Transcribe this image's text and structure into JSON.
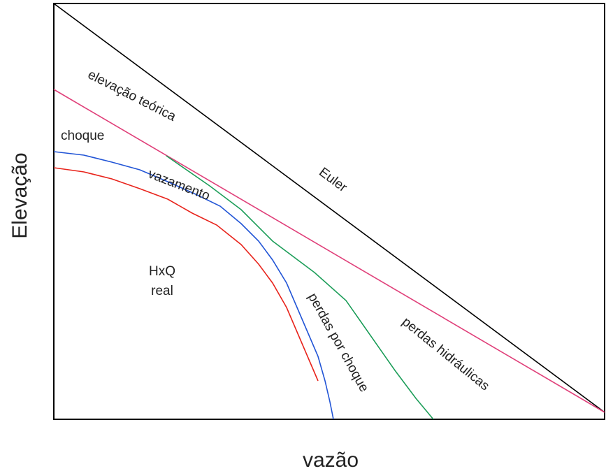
{
  "axes": {
    "y_title": "Elevação",
    "x_title": "vazão"
  },
  "labels": {
    "euler": "Euler",
    "elevacao_teorica": "elevação teórica",
    "choque": "choque",
    "vazamento": "vazamento",
    "hxq_line1": "HxQ",
    "hxq_line2": "real",
    "perdas_por_choque": "perdas por choque",
    "perdas_hidraulicas": "perdas hidráulicas"
  },
  "colors": {
    "frame": "#000000",
    "euler": "#000000",
    "theoretical": "#e0407a",
    "shock": "#2255d6",
    "hydraulic": "#1e9e5a",
    "real": "#e8241c",
    "text": "#222222"
  }
}
